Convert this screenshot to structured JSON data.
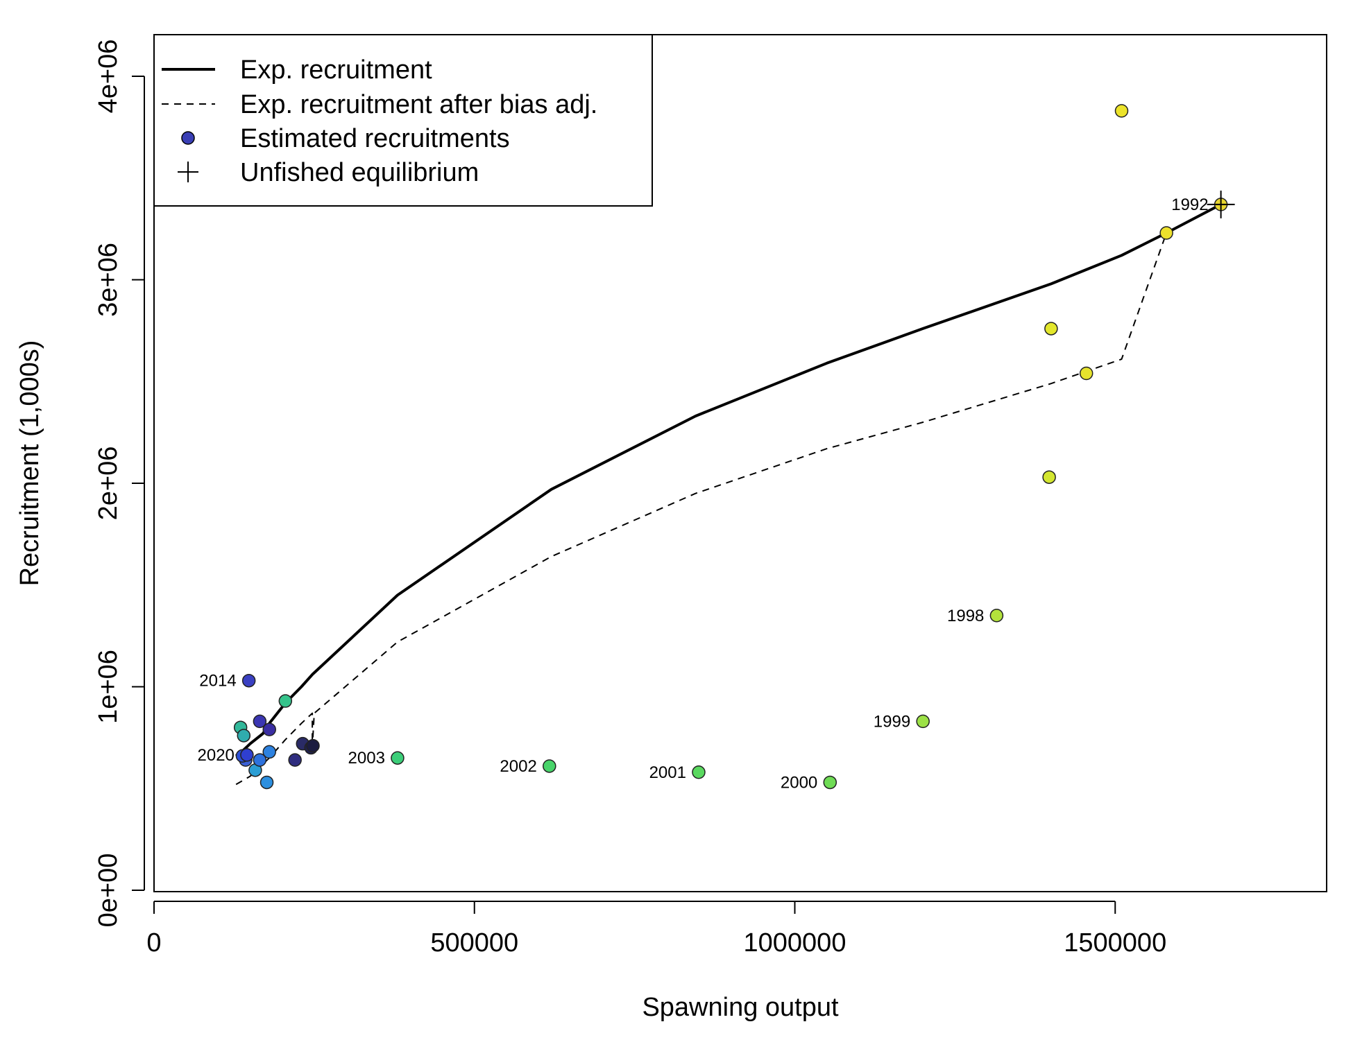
{
  "chart_data": {
    "type": "scatter",
    "xlabel": "Spawning output",
    "ylabel": "Recruitment (1,000s)",
    "xlim": [
      0,
      1830000
    ],
    "ylim": [
      0,
      4200000
    ],
    "x_ticks": [
      0,
      500000,
      1000000,
      1500000
    ],
    "x_tick_labels": [
      "0",
      "500000",
      "1000000",
      "1500000"
    ],
    "y_ticks": [
      0,
      1000000,
      2000000,
      3000000,
      4000000
    ],
    "y_tick_labels": [
      "0e+00",
      "1e+06",
      "2e+06",
      "3e+06",
      "4e+06"
    ],
    "legend": {
      "position": "top-left",
      "items": [
        {
          "label": "Exp. recruitment",
          "symbol": "solid-line"
        },
        {
          "label": "Exp. recruitment after bias adj.",
          "symbol": "dashed-line"
        },
        {
          "label": "Estimated recruitments",
          "symbol": "point",
          "color": "#3a3fb5"
        },
        {
          "label": "Unfished equilibrium",
          "symbol": "plus"
        }
      ]
    },
    "series": [
      {
        "name": "Exp. recruitment",
        "style": "solid",
        "x": [
          128000,
          140000,
          150000,
          170000,
          180000,
          205000,
          230000,
          247000,
          380000,
          620000,
          845000,
          1050000,
          1200000,
          1400000,
          1510000,
          1580000,
          1665000
        ],
        "y": [
          660000,
          690000,
          720000,
          770000,
          820000,
          920000,
          1000000,
          1060000,
          1450000,
          1970000,
          2330000,
          2590000,
          2760000,
          2980000,
          3120000,
          3230000,
          3370000
        ]
      },
      {
        "name": "Exp. recruitment after bias adj.",
        "style": "dashed",
        "x": [
          128000,
          150000,
          180000,
          205000,
          230000,
          247000,
          247000,
          250000,
          380000,
          620000,
          845000,
          1050000,
          1200000,
          1400000,
          1510000,
          1580000,
          1665000
        ],
        "y": [
          520000,
          560000,
          650000,
          740000,
          820000,
          870000,
          700000,
          870000,
          1220000,
          1640000,
          1950000,
          2170000,
          2300000,
          2490000,
          2610000,
          3230000,
          3370000
        ]
      }
    ],
    "points": [
      {
        "x": 1665000,
        "y": 3370000,
        "label": "1992",
        "color": "#e8d630"
      },
      {
        "x": 1510000,
        "y": 3830000,
        "label": "",
        "color": "#ece32a"
      },
      {
        "x": 1580000,
        "y": 3230000,
        "label": "",
        "color": "#ede12c"
      },
      {
        "x": 1455000,
        "y": 2540000,
        "label": "",
        "color": "#e6e32d"
      },
      {
        "x": 1400000,
        "y": 2760000,
        "label": "",
        "color": "#e3e72c"
      },
      {
        "x": 1397000,
        "y": 2030000,
        "label": "",
        "color": "#d3e630"
      },
      {
        "x": 1315000,
        "y": 1350000,
        "label": "1998",
        "color": "#b3e23c"
      },
      {
        "x": 1200000,
        "y": 830000,
        "label": "1999",
        "color": "#9ce146"
      },
      {
        "x": 1055000,
        "y": 530000,
        "label": "2000",
        "color": "#6fdc55"
      },
      {
        "x": 850000,
        "y": 580000,
        "label": "2001",
        "color": "#5ad85f"
      },
      {
        "x": 617000,
        "y": 610000,
        "label": "2002",
        "color": "#48d46a"
      },
      {
        "x": 380000,
        "y": 650000,
        "label": "2003",
        "color": "#3cce79"
      },
      {
        "x": 205000,
        "y": 930000,
        "label": "",
        "color": "#35c38b"
      },
      {
        "x": 135000,
        "y": 800000,
        "label": "",
        "color": "#31b89a"
      },
      {
        "x": 140000,
        "y": 760000,
        "label": "",
        "color": "#30acad"
      },
      {
        "x": 158000,
        "y": 590000,
        "label": "",
        "color": "#2b9ed4"
      },
      {
        "x": 176000,
        "y": 530000,
        "label": "",
        "color": "#2c8fdf"
      },
      {
        "x": 180000,
        "y": 680000,
        "label": "",
        "color": "#2d82e0"
      },
      {
        "x": 165000,
        "y": 640000,
        "label": "",
        "color": "#2e72dd"
      },
      {
        "x": 143000,
        "y": 640000,
        "label": "",
        "color": "#3a5fd4"
      },
      {
        "x": 148000,
        "y": 1030000,
        "label": "2014",
        "color": "#3a40c2"
      },
      {
        "x": 165000,
        "y": 830000,
        "label": "",
        "color": "#3b36b2"
      },
      {
        "x": 180000,
        "y": 790000,
        "label": "",
        "color": "#3a2ea2"
      },
      {
        "x": 220000,
        "y": 640000,
        "label": "",
        "color": "#2f2d7f"
      },
      {
        "x": 232000,
        "y": 720000,
        "label": "",
        "color": "#2a2b66"
      },
      {
        "x": 245000,
        "y": 700000,
        "label": "",
        "color": "#1f2150"
      },
      {
        "x": 248000,
        "y": 710000,
        "label": "",
        "color": "#1b1c40"
      },
      {
        "x": 138000,
        "y": 660000,
        "label": "",
        "color": "#2c4fd6"
      },
      {
        "x": 145000,
        "y": 665000,
        "label": "2020",
        "color": "#2f3fd0"
      }
    ],
    "unfished_equilibrium": {
      "x": 1665000,
      "y": 3370000
    },
    "grid": false
  }
}
